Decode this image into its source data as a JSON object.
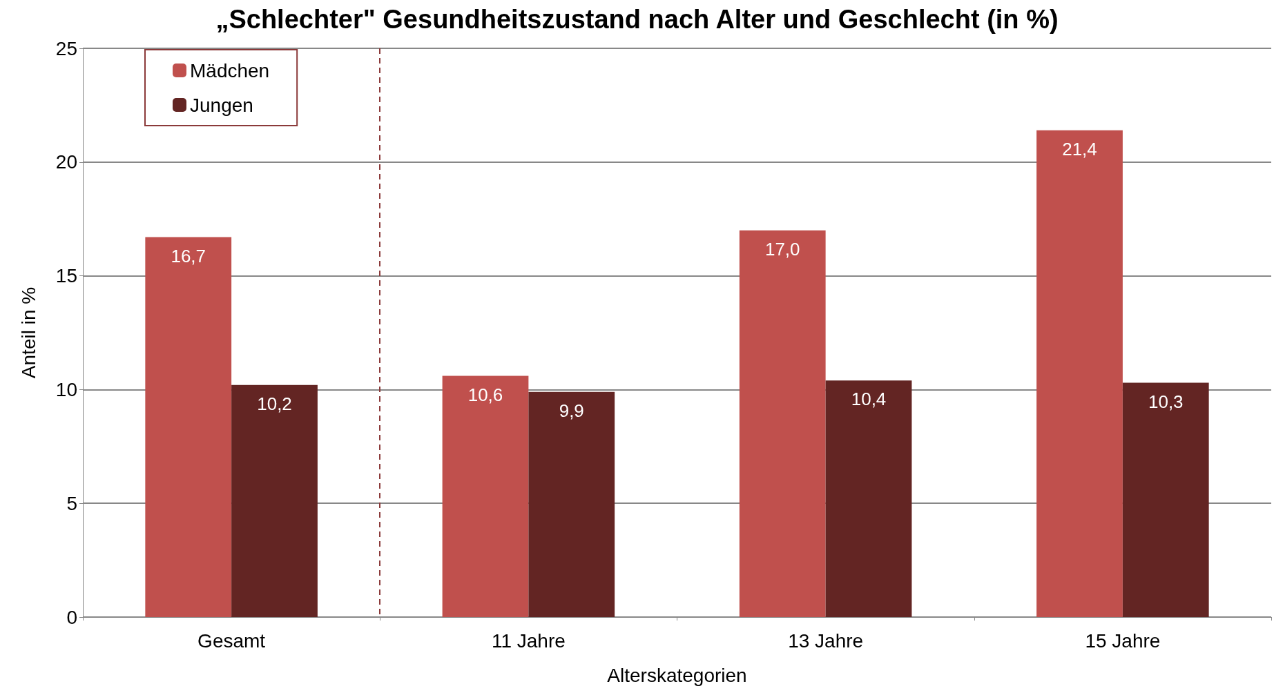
{
  "chart_data": {
    "type": "bar",
    "title": "„Schlechter\" Gesundheitszustand nach Alter und Geschlecht (in %)",
    "xlabel": "Alterskategorien",
    "ylabel": "Anteil in %",
    "categories": [
      "Gesamt",
      "11 Jahre",
      "13 Jahre",
      "15 Jahre"
    ],
    "series": [
      {
        "name": "Mädchen",
        "color": "#c0504d",
        "values": [
          16.7,
          10.6,
          17.0,
          21.4
        ],
        "value_labels": [
          "16,7",
          "10,6",
          "17,0",
          "21,4"
        ]
      },
      {
        "name": "Jungen",
        "color": "#632523",
        "values": [
          10.2,
          9.9,
          10.4,
          10.3
        ],
        "value_labels": [
          "10,2",
          "9,9",
          "10,4",
          "10,3"
        ]
      }
    ],
    "ylim": [
      0,
      25
    ],
    "yticks": [
      0,
      5,
      10,
      15,
      20,
      25
    ],
    "grid": "y",
    "legend": "top left"
  }
}
